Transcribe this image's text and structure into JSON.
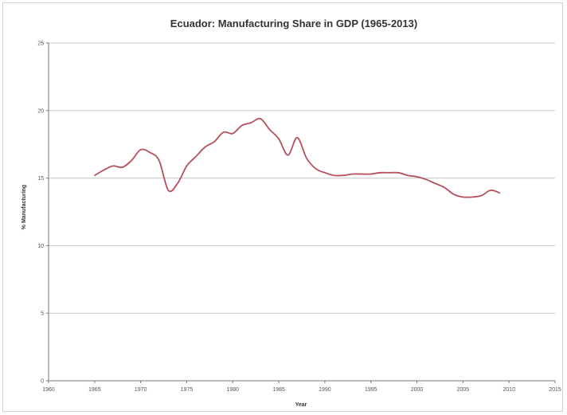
{
  "chart_data": {
    "type": "line",
    "title": "Ecuador: Manufacturing Share in GDP  (1965-2013)",
    "xlabel": "Year",
    "ylabel": "% Manufacturing",
    "xlim": [
      1960,
      2015
    ],
    "ylim": [
      0,
      25
    ],
    "xticks": [
      1960,
      1965,
      1970,
      1975,
      1980,
      1985,
      1990,
      1995,
      2000,
      2005,
      2010,
      2015
    ],
    "yticks": [
      0,
      5,
      10,
      15,
      20,
      25
    ],
    "grid": "horizontal",
    "legend": "none",
    "line_color": "#b5505c",
    "series": [
      {
        "x": [
          1965,
          1966,
          1967,
          1968,
          1969,
          1970,
          1971,
          1972,
          1973,
          1974,
          1975,
          1976,
          1977,
          1978,
          1979,
          1980,
          1981,
          1982,
          1983,
          1984,
          1985,
          1986,
          1987,
          1988,
          1989,
          1990,
          1991,
          1992,
          1993,
          1994,
          1995,
          1996,
          1997,
          1998,
          1999,
          2000,
          2001,
          2002,
          2003,
          2004,
          2005,
          2006,
          2007,
          2008,
          2009
        ],
        "y": [
          15.2,
          15.6,
          15.9,
          15.8,
          16.3,
          17.1,
          16.9,
          16.3,
          14.1,
          14.6,
          15.9,
          16.6,
          17.3,
          17.7,
          18.4,
          18.3,
          18.9,
          19.1,
          19.4,
          18.6,
          17.9,
          16.7,
          18.0,
          16.5,
          15.7,
          15.4,
          15.2,
          15.2,
          15.3,
          15.3,
          15.3,
          15.4,
          15.4,
          15.4,
          15.2,
          15.1,
          14.9,
          14.6,
          14.3,
          13.8,
          13.6,
          13.6,
          13.7,
          14.1,
          13.9
        ]
      }
    ]
  }
}
